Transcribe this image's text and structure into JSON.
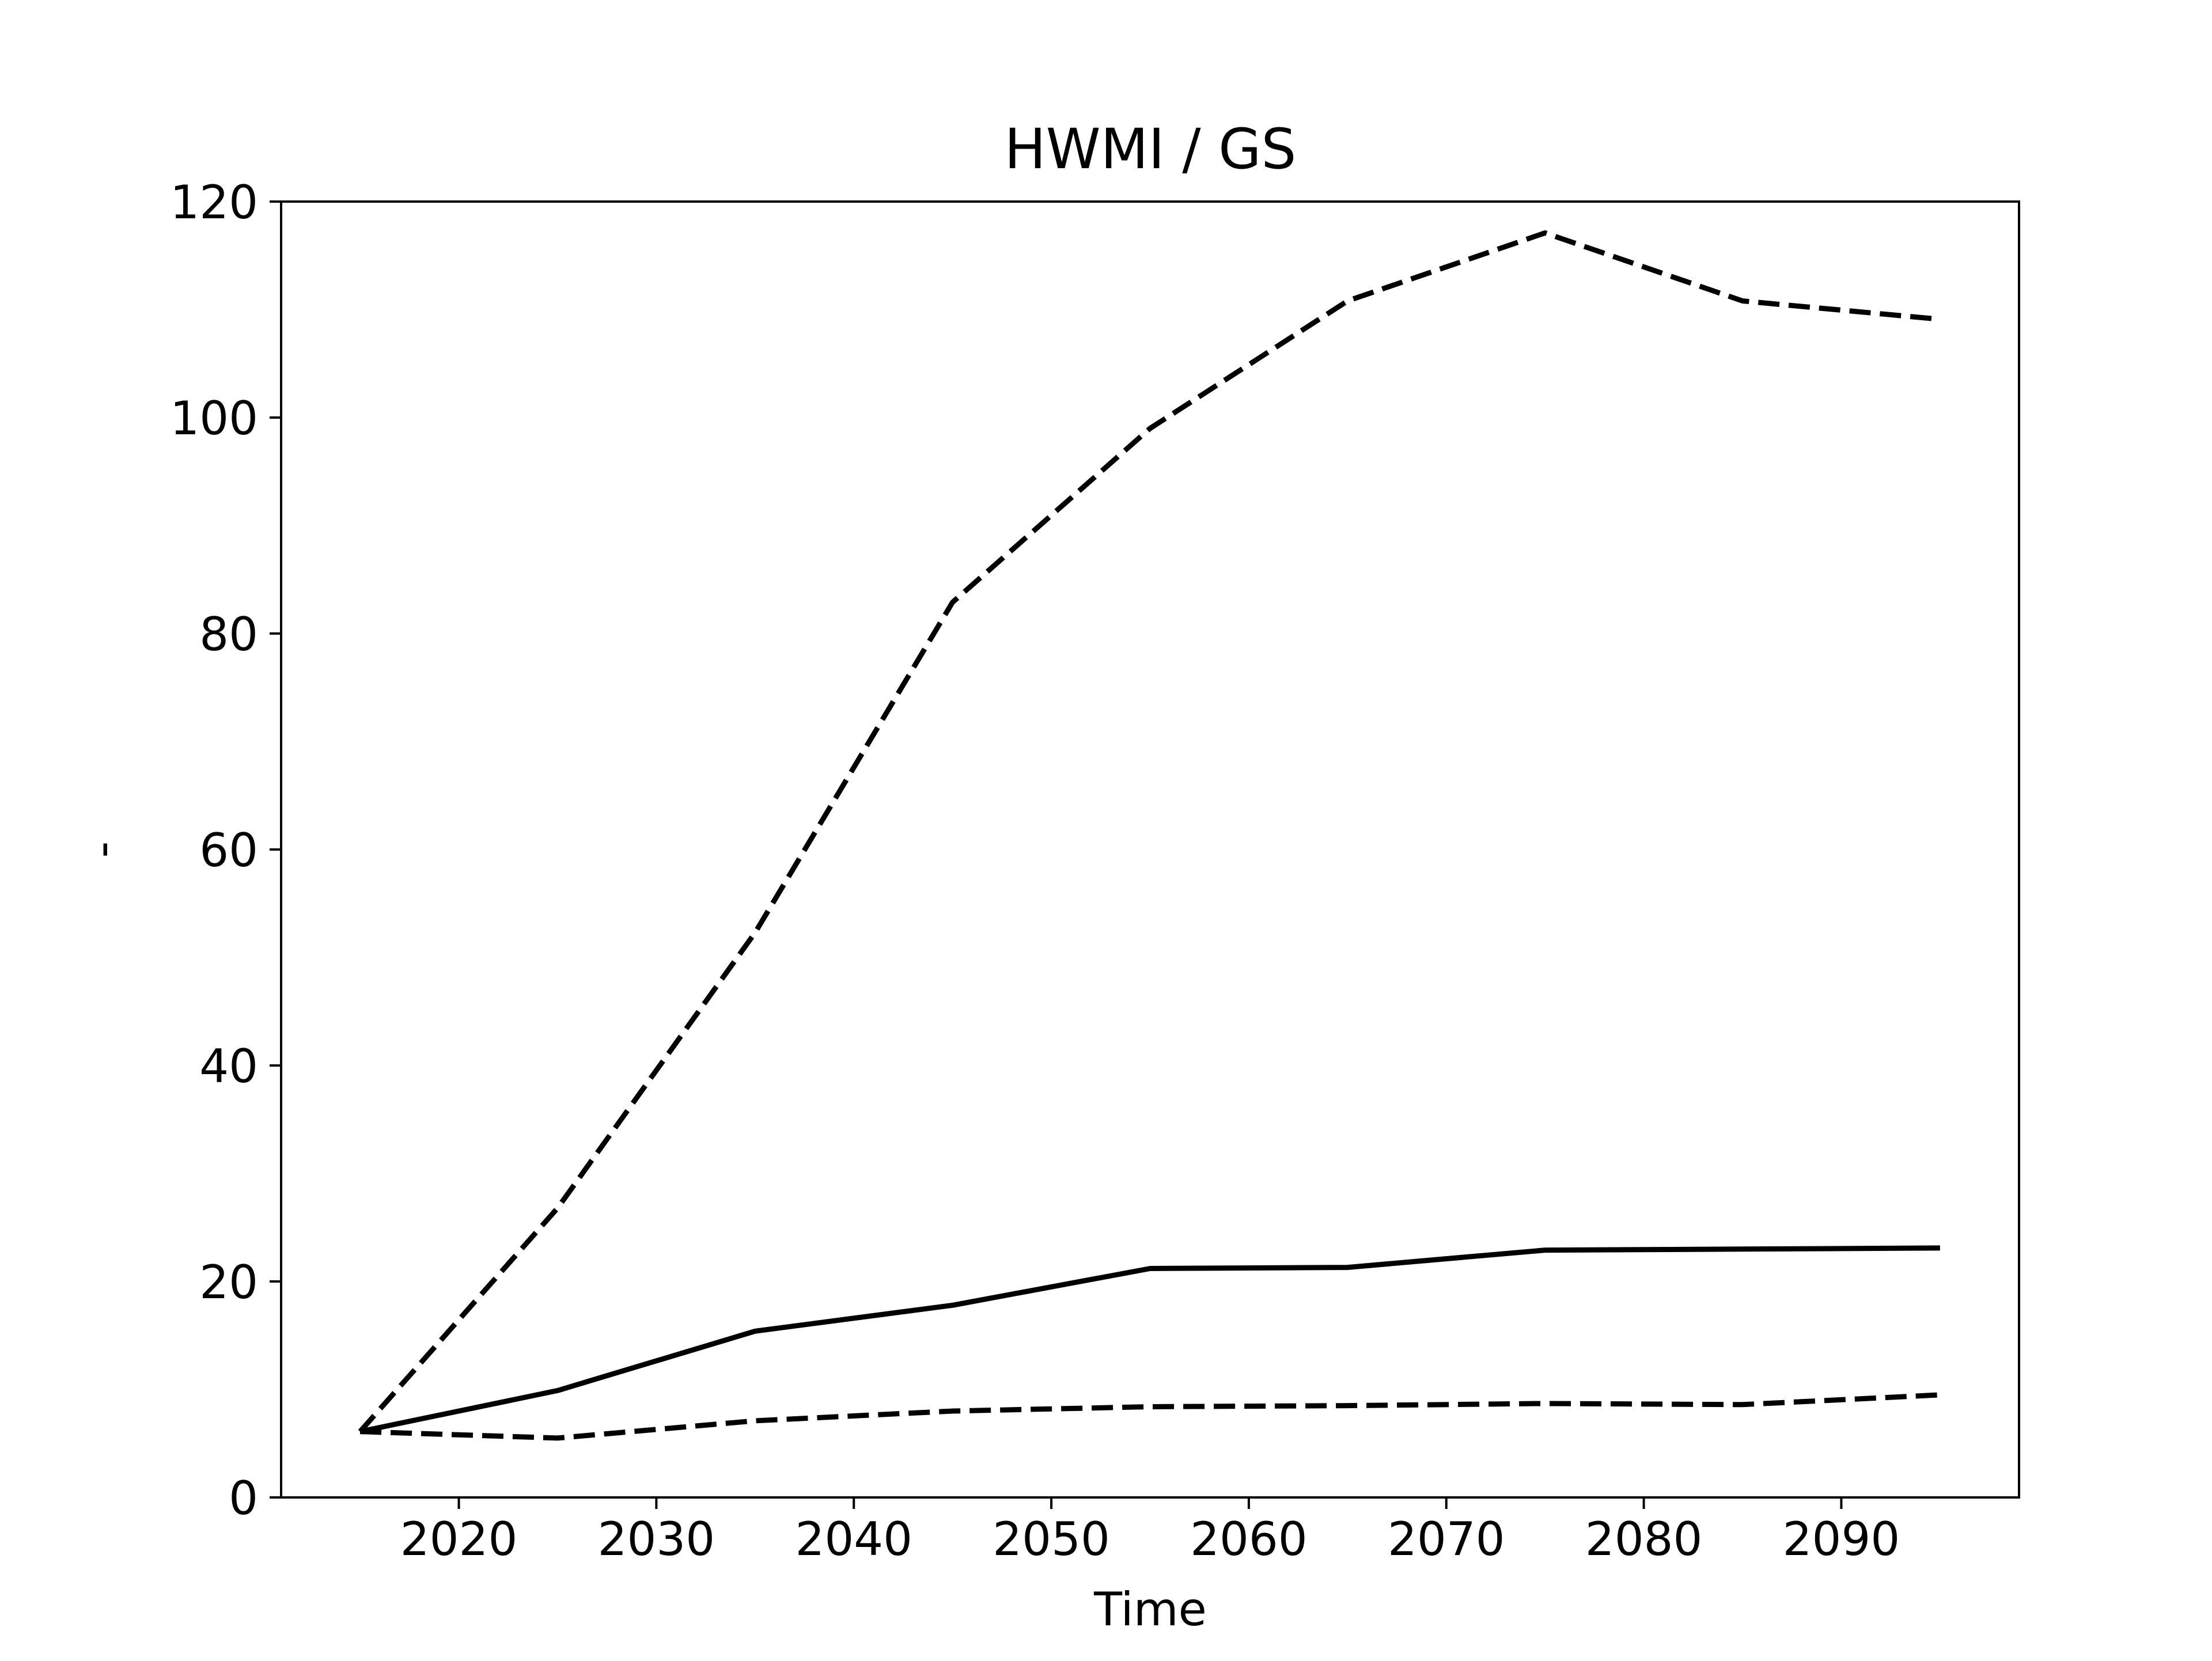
{
  "chart_data": {
    "type": "line",
    "title": "HWMI / GS",
    "xlabel": "Time",
    "ylabel": "-",
    "xlim": [
      2011.0,
      2099.0
    ],
    "ylim": [
      0,
      120
    ],
    "xticks": [
      2020,
      2030,
      2040,
      2050,
      2060,
      2070,
      2080,
      2090
    ],
    "yticks": [
      0,
      20,
      40,
      60,
      80,
      100,
      120
    ],
    "grid": false,
    "legend": "none",
    "x": [
      2015,
      2025,
      2035,
      2045,
      2055,
      2065,
      2075,
      2085,
      2095
    ],
    "series": [
      {
        "style": "solid",
        "color": "#000000",
        "values": [
          6.1,
          9.9,
          15.4,
          17.8,
          21.2,
          21.3,
          22.9,
          23.0,
          23.1
        ]
      },
      {
        "style": "dashed",
        "color": "#000000",
        "values": [
          6.1,
          26.8,
          52.3,
          82.9,
          99.0,
          110.8,
          117.1,
          110.8,
          109.1
        ]
      },
      {
        "style": "dashed",
        "color": "#000000",
        "values": [
          6.1,
          5.5,
          7.1,
          8.0,
          8.4,
          8.5,
          8.7,
          8.6,
          9.5
        ]
      }
    ]
  }
}
